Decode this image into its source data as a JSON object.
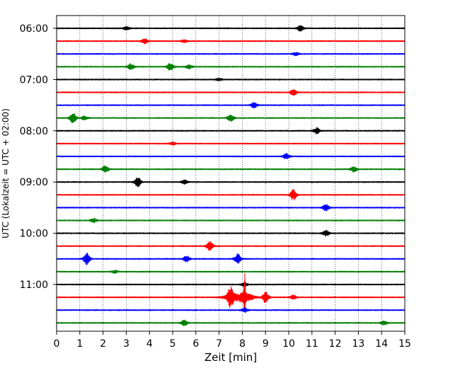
{
  "chart_data": {
    "type": "line",
    "title": "",
    "xlabel": "Zeit  [min]",
    "ylabel": "UTC (Lokalzeit = UTC + 02:00)",
    "xlim": [
      0,
      15
    ],
    "xticks": [
      "0",
      "1",
      "2",
      "3",
      "4",
      "5",
      "6",
      "7",
      "8",
      "9",
      "10",
      "11",
      "12",
      "13",
      "14",
      "15"
    ],
    "yticks": [
      "06:00",
      "07:00",
      "08:00",
      "09:00",
      "10:00",
      "11:00"
    ],
    "grid": "vertical dotted",
    "legend": "none",
    "colors": [
      "#000000",
      "#ff0000",
      "#0000ff",
      "#008000"
    ],
    "series": [
      {
        "start": "06:00",
        "color": "#000000",
        "events": [
          {
            "t": 3.0,
            "amp": 0.25
          },
          {
            "t": 10.5,
            "amp": 0.45
          }
        ]
      },
      {
        "start": "06:15",
        "color": "#ff0000",
        "events": [
          {
            "t": 3.8,
            "amp": 0.4
          },
          {
            "t": 5.5,
            "amp": 0.2
          }
        ]
      },
      {
        "start": "06:30",
        "color": "#0000ff",
        "events": [
          {
            "t": 10.3,
            "amp": 0.25
          }
        ]
      },
      {
        "start": "06:45",
        "color": "#008000",
        "events": [
          {
            "t": 3.2,
            "amp": 0.45
          },
          {
            "t": 4.9,
            "amp": 0.6
          },
          {
            "t": 5.7,
            "amp": 0.3
          }
        ]
      },
      {
        "start": "07:00",
        "color": "#000000",
        "events": [
          {
            "t": 7.0,
            "amp": 0.2
          }
        ]
      },
      {
        "start": "07:15",
        "color": "#ff0000",
        "events": [
          {
            "t": 10.2,
            "amp": 0.45
          }
        ]
      },
      {
        "start": "07:30",
        "color": "#0000ff",
        "events": [
          {
            "t": 8.5,
            "amp": 0.4
          }
        ]
      },
      {
        "start": "07:45",
        "color": "#008000",
        "events": [
          {
            "t": 0.7,
            "amp": 0.9
          },
          {
            "t": 1.2,
            "amp": 0.3
          },
          {
            "t": 7.5,
            "amp": 0.5
          }
        ]
      },
      {
        "start": "08:00",
        "color": "#000000",
        "events": [
          {
            "t": 11.2,
            "amp": 0.45
          }
        ]
      },
      {
        "start": "08:15",
        "color": "#ff0000",
        "events": [
          {
            "t": 5.0,
            "amp": 0.2
          }
        ]
      },
      {
        "start": "08:30",
        "color": "#0000ff",
        "events": [
          {
            "t": 9.9,
            "amp": 0.45
          }
        ]
      },
      {
        "start": "08:45",
        "color": "#008000",
        "events": [
          {
            "t": 2.1,
            "amp": 0.6
          },
          {
            "t": 12.8,
            "amp": 0.4
          }
        ]
      },
      {
        "start": "09:00",
        "color": "#000000",
        "events": [
          {
            "t": 3.5,
            "amp": 0.75
          },
          {
            "t": 5.5,
            "amp": 0.3
          }
        ]
      },
      {
        "start": "09:15",
        "color": "#ff0000",
        "events": [
          {
            "t": 10.2,
            "amp": 0.8
          }
        ]
      },
      {
        "start": "09:30",
        "color": "#0000ff",
        "events": [
          {
            "t": 11.6,
            "amp": 0.5
          }
        ]
      },
      {
        "start": "09:45",
        "color": "#008000",
        "events": [
          {
            "t": 1.6,
            "amp": 0.3
          }
        ]
      },
      {
        "start": "10:00",
        "color": "#000000",
        "events": [
          {
            "t": 11.6,
            "amp": 0.45
          }
        ]
      },
      {
        "start": "10:15",
        "color": "#ff0000",
        "events": [
          {
            "t": 6.6,
            "amp": 0.75
          }
        ]
      },
      {
        "start": "10:30",
        "color": "#0000ff",
        "events": [
          {
            "t": 1.3,
            "amp": 0.9
          },
          {
            "t": 5.6,
            "amp": 0.5
          },
          {
            "t": 7.8,
            "amp": 0.75
          }
        ]
      },
      {
        "start": "10:45",
        "color": "#008000",
        "events": [
          {
            "t": 2.5,
            "amp": 0.2
          }
        ]
      },
      {
        "start": "11:00",
        "color": "#000000",
        "events": [
          {
            "t": 8.1,
            "amp": 0.3
          }
        ]
      },
      {
        "start": "11:15",
        "color": "#ff0000",
        "events": [
          {
            "t": 7.5,
            "amp": 1.4
          },
          {
            "t": 8.1,
            "amp": 3.4
          },
          {
            "t": 9.0,
            "amp": 0.9
          },
          {
            "t": 10.2,
            "amp": 0.3
          }
        ]
      },
      {
        "start": "11:30",
        "color": "#0000ff",
        "events": [
          {
            "t": 8.1,
            "amp": 0.3
          }
        ]
      },
      {
        "start": "11:45",
        "color": "#008000",
        "events": [
          {
            "t": 5.5,
            "amp": 0.45
          },
          {
            "t": 14.1,
            "amp": 0.3
          }
        ]
      }
    ]
  }
}
